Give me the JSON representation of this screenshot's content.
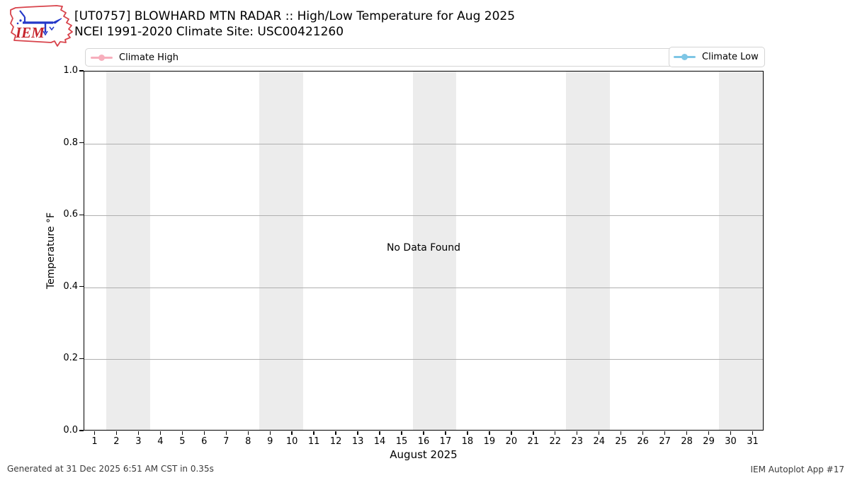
{
  "header": {
    "logo_text": "IEM",
    "title": "[UT0757] BLOWHARD MTN RADAR :: High/Low Temperature for Aug 2025",
    "subtitle": "NCEI 1991-2020 Climate Site: USC00421260"
  },
  "legend": {
    "entries": [
      {
        "label": "Climate High",
        "color": "#f7aebc"
      },
      {
        "label": "Climate Low",
        "color": "#7ec6e5"
      }
    ]
  },
  "chart_data": {
    "type": "line",
    "title": "[UT0757] BLOWHARD MTN RADAR :: High/Low Temperature for Aug 2025",
    "subtitle": "NCEI 1991-2020 Climate Site: USC00421260",
    "xlabel": "August 2025",
    "ylabel": "Temperature °F",
    "xlim": [
      0.5,
      31.5
    ],
    "ylim": [
      0.0,
      1.0
    ],
    "x_ticks": [
      1,
      2,
      3,
      4,
      5,
      6,
      7,
      8,
      9,
      10,
      11,
      12,
      13,
      14,
      15,
      16,
      17,
      18,
      19,
      20,
      21,
      22,
      23,
      24,
      25,
      26,
      27,
      28,
      29,
      30,
      31
    ],
    "y_ticks": [
      "0.0",
      "0.2",
      "0.4",
      "0.6",
      "0.8",
      "1.0"
    ],
    "grid": true,
    "legend_position": "top",
    "weekend_bands": [
      [
        1.5,
        3.5
      ],
      [
        8.5,
        10.5
      ],
      [
        15.5,
        17.5
      ],
      [
        22.5,
        24.5
      ],
      [
        29.5,
        31.5
      ]
    ],
    "series": [
      {
        "name": "Climate High",
        "color": "#f7aebc",
        "values": []
      },
      {
        "name": "Climate Low",
        "color": "#7ec6e5",
        "values": []
      }
    ],
    "no_data_text": "No Data Found",
    "band_color": "#ececec",
    "grid_color": "#b0b0b0"
  },
  "footer": {
    "generated": "Generated at 31 Dec 2025 6:51 AM CST in 0.35s",
    "app": "IEM Autoplot App #17"
  }
}
